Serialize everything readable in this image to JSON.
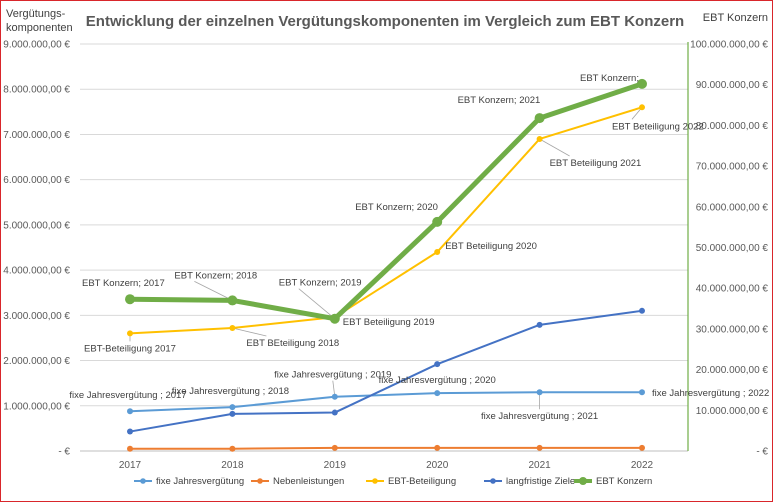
{
  "chart_data": {
    "type": "line",
    "title": "Entwicklung der einzelnen Vergütungskomponenten im Vergleich zum EBT Konzern",
    "ylabel_left": [
      "Vergütungs-",
      "komponenten"
    ],
    "ylabel_right": "EBT Konzern",
    "categories": [
      "2017",
      "2018",
      "2019",
      "2020",
      "2021",
      "2022"
    ],
    "ylim_left": [
      0,
      9000000
    ],
    "ylim_right": [
      0,
      100000000
    ],
    "yticks_left": [
      "- €",
      "1.000.000,00 €",
      "2.000.000,00 €",
      "3.000.000,00 €",
      "4.000.000,00 €",
      "5.000.000,00 €",
      "6.000.000,00 €",
      "7.000.000,00 €",
      "8.000.000,00 €",
      "9.000.000,00 €"
    ],
    "yticks_right": [
      "- €",
      "10.000.000,00 €",
      "20.000.000,00 €",
      "30.000.000,00 €",
      "40.000.000,00 €",
      "50.000.000,00 €",
      "60.000.000,00 €",
      "70.000.000,00 €",
      "80.000.000,00 €",
      "90.000.000,00 €",
      "100.000.000,00 €"
    ],
    "grid": true,
    "legend_position": "bottom",
    "series": [
      {
        "name": "fixe Jahresvergütung",
        "axis": "left",
        "color": "#5b9bd5",
        "width": 2,
        "values": [
          880000,
          970000,
          1200000,
          1280000,
          1300000,
          1300000
        ]
      },
      {
        "name": "Nebenleistungen",
        "axis": "left",
        "color": "#ed7d31",
        "width": 2,
        "values": [
          50000,
          50000,
          70000,
          70000,
          70000,
          70000
        ]
      },
      {
        "name": "EBT-Beteiligung",
        "axis": "left",
        "color": "#ffc000",
        "width": 2,
        "values": [
          2600000,
          2720000,
          2960000,
          4400000,
          6900000,
          7600000
        ]
      },
      {
        "name": "langfristige Ziele",
        "axis": "left",
        "color": "#4472c4",
        "width": 2,
        "values": [
          430000,
          820000,
          850000,
          1920000,
          2790000,
          3100000
        ]
      },
      {
        "name": "EBT Konzern",
        "axis": "right",
        "color": "#70ad47",
        "width": 5,
        "values": [
          37300000,
          37000000,
          32500000,
          56300000,
          81800000,
          90200000
        ]
      }
    ],
    "annotations": [
      {
        "text": "fixe Jahresvergütung ; 2017",
        "series": 0,
        "point": 0
      },
      {
        "text": "fixe Jahresvergütung ; 2018",
        "series": 0,
        "point": 1
      },
      {
        "text": "fixe Jahresvergütung ; 2019",
        "series": 0,
        "point": 2
      },
      {
        "text": "fixe Jahresvergütung ; 2020",
        "series": 0,
        "point": 3
      },
      {
        "text": "fixe Jahresvergütung ; 2021",
        "series": 0,
        "point": 4
      },
      {
        "text": "fixe Jahresvergütung ; 2022",
        "series": 0,
        "point": 5
      },
      {
        "text": "EBT-Beteiligung 2017",
        "series": 2,
        "point": 0
      },
      {
        "text": "EBT BEteiligung 2018",
        "series": 2,
        "point": 1
      },
      {
        "text": "EBT Beteiligung 2019",
        "series": 2,
        "point": 2
      },
      {
        "text": "EBT Beteiligung 2020",
        "series": 2,
        "point": 3
      },
      {
        "text": "EBT Beteiligung 2021",
        "series": 2,
        "point": 4
      },
      {
        "text": "EBT Beteiligung 2022",
        "series": 2,
        "point": 5
      },
      {
        "text": "EBT Konzern; 2017",
        "series": 4,
        "point": 0
      },
      {
        "text": "EBT Konzern; 2018",
        "series": 4,
        "point": 1
      },
      {
        "text": "EBT Konzern; 2019",
        "series": 4,
        "point": 2
      },
      {
        "text": "EBT Konzern; 2020",
        "series": 4,
        "point": 3
      },
      {
        "text": "EBT Konzern; 2021",
        "series": 4,
        "point": 4
      },
      {
        "text": "EBT Konzern;",
        "series": 4,
        "point": 5
      }
    ]
  }
}
